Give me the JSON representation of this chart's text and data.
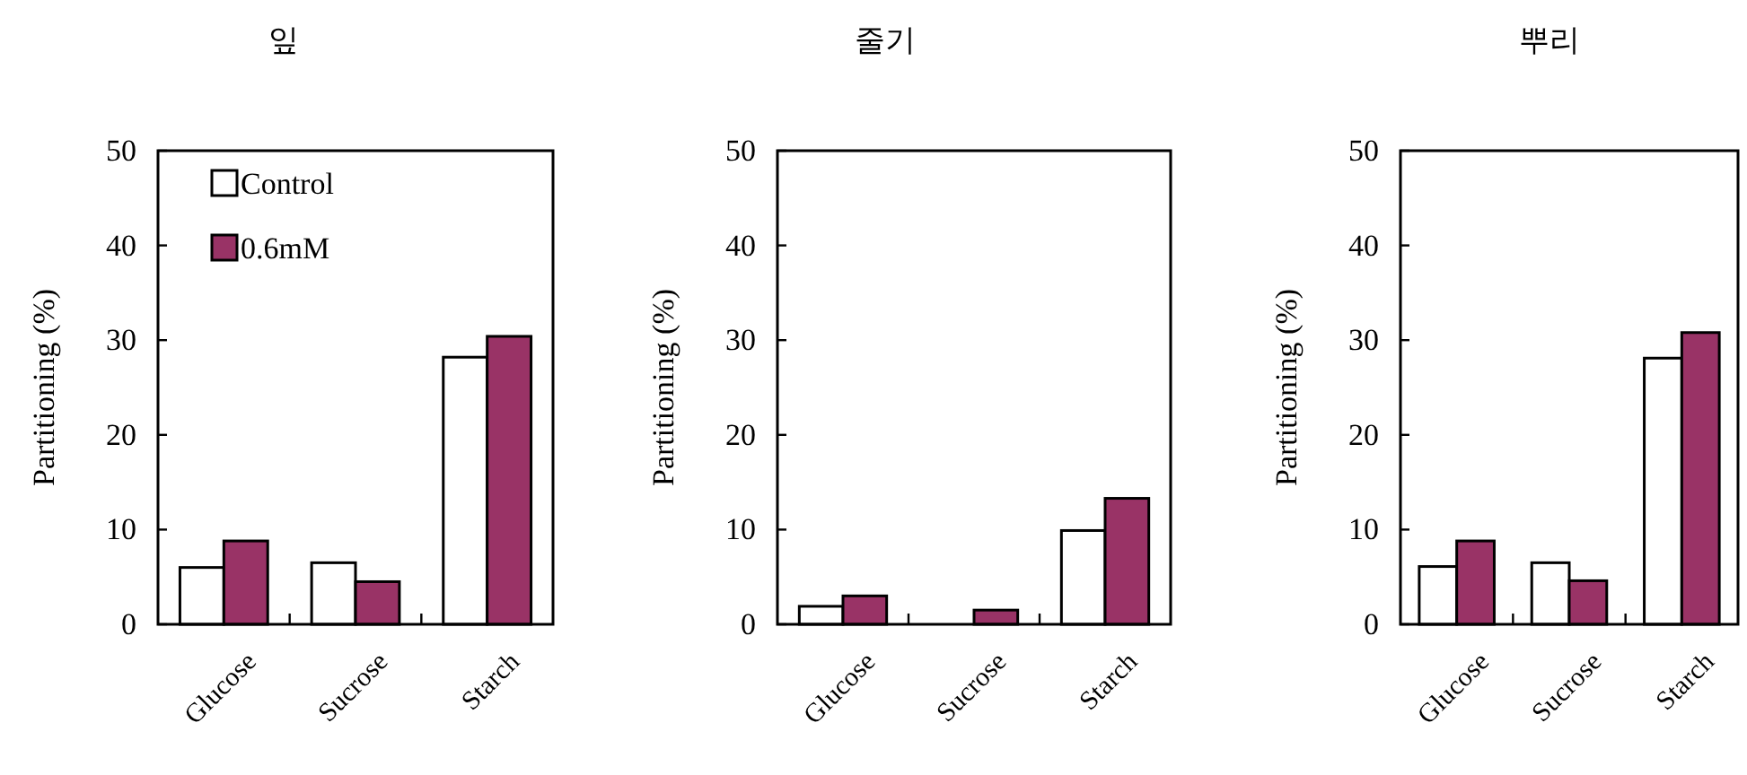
{
  "chart_data": [
    {
      "type": "bar",
      "title": "잎",
      "ylabel": "Partitioning (%)",
      "categories": [
        "Glucose",
        "Sucrose",
        "Starch"
      ],
      "ylim": [
        0,
        50
      ],
      "yticks": [
        0,
        10,
        20,
        30,
        40,
        50
      ],
      "legend": "top left",
      "series": [
        {
          "name": "Control",
          "color": "#ffffff",
          "values": [
            6.0,
            6.5,
            28.2
          ]
        },
        {
          "name": "0.6mM",
          "color": "#993366",
          "values": [
            8.8,
            4.5,
            30.4
          ]
        }
      ]
    },
    {
      "type": "bar",
      "title": "줄기",
      "ylabel": "Partitioning (%)",
      "categories": [
        "Glucose",
        "Sucrose",
        "Starch"
      ],
      "ylim": [
        0,
        50
      ],
      "yticks": [
        0,
        10,
        20,
        30,
        40,
        50
      ],
      "series": [
        {
          "color": "#ffffff",
          "values": [
            1.9,
            0,
            9.9
          ]
        },
        {
          "color": "#993366",
          "values": [
            3.0,
            1.5,
            13.3
          ]
        }
      ]
    },
    {
      "type": "bar",
      "title": "뿌리",
      "ylabel": "Partitioning (%)",
      "categories": [
        "Glucose",
        "Sucrose",
        "Starch"
      ],
      "ylim": [
        0,
        50
      ],
      "yticks": [
        0,
        10,
        20,
        30,
        40,
        50
      ],
      "series": [
        {
          "color": "#ffffff",
          "values": [
            6.1,
            6.5,
            28.1
          ]
        },
        {
          "color": "#993366",
          "values": [
            8.8,
            4.6,
            30.8
          ]
        }
      ]
    }
  ]
}
